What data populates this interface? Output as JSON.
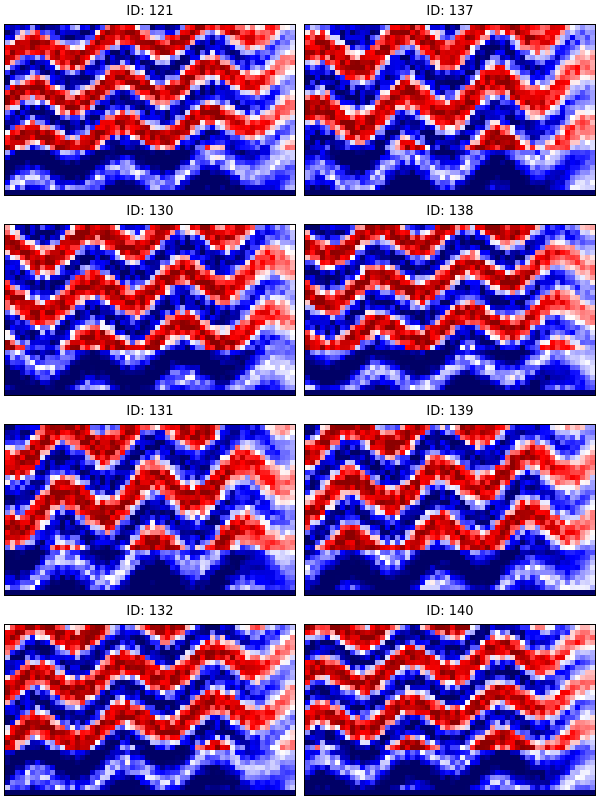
{
  "figure": {
    "layout": "4x2 grid of heatmap panels",
    "colormap": {
      "name": "seismic",
      "low": "#000066",
      "mid": "#ffffff",
      "high": "#8b0000"
    }
  },
  "chart_data": [
    {
      "type": "heatmap",
      "title": "ID: 121"
    },
    {
      "type": "heatmap",
      "title": "ID: 137"
    },
    {
      "type": "heatmap",
      "title": "ID: 130"
    },
    {
      "type": "heatmap",
      "title": "ID: 138"
    },
    {
      "type": "heatmap",
      "title": "ID: 131"
    },
    {
      "type": "heatmap",
      "title": "ID: 139"
    },
    {
      "type": "heatmap",
      "title": "ID: 132"
    },
    {
      "type": "heatmap",
      "title": "ID: 140"
    }
  ]
}
